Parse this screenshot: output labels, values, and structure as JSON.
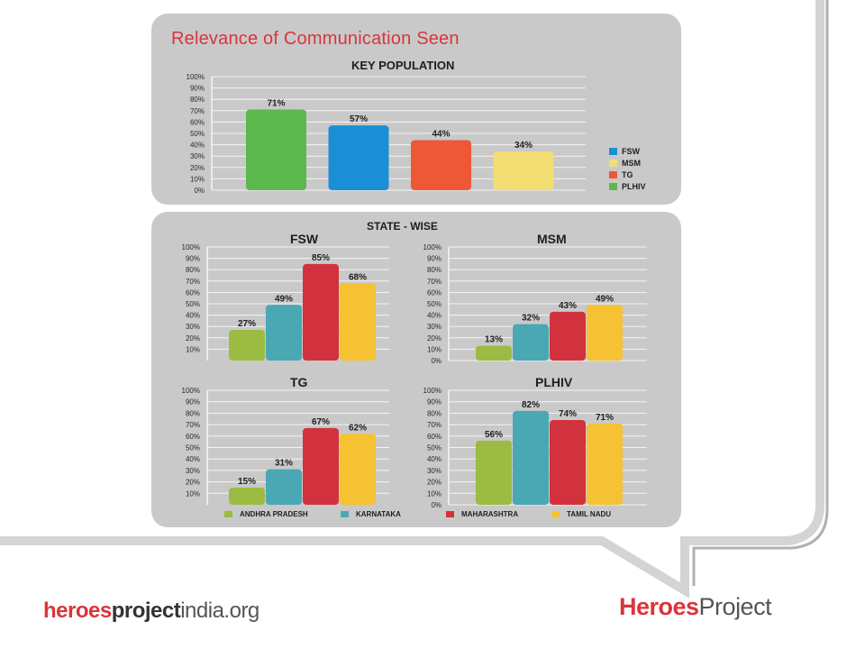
{
  "page": {
    "title": "Relevance of Communication Seen"
  },
  "colors": {
    "panel": "#c9c9c9",
    "grid": "#f4f4f4",
    "title_red": "#d9353c",
    "frame": "#b9b9b9"
  },
  "chart_data": [
    {
      "type": "bar",
      "title": "KEY POPULATION",
      "categories": [
        "PLHIV",
        "FSW",
        "TG",
        "MSM"
      ],
      "values": [
        71,
        57,
        44,
        34
      ],
      "data_labels": [
        "71%",
        "57%",
        "44%",
        "34%"
      ],
      "colors": [
        "#5cb84c",
        "#1a8fd5",
        "#ee5837",
        "#f2de73"
      ],
      "ylim": [
        0,
        100
      ],
      "yticks": [
        "100%",
        "90%",
        "80%",
        "70%",
        "60%",
        "50%",
        "40%",
        "30%",
        "20%",
        "10%",
        "0%"
      ],
      "legend": [
        {
          "label": "FSW",
          "color": "#1a8fd5"
        },
        {
          "label": "MSM",
          "color": "#f2de73"
        },
        {
          "label": "TG",
          "color": "#ee5837"
        },
        {
          "label": "PLHIV",
          "color": "#5cb84c"
        }
      ],
      "legend_position": "right",
      "grid": true
    },
    {
      "type": "bar",
      "title": "FSW",
      "categories": [
        "ANDHRA PRADESH",
        "KARNATAKA",
        "MAHARASHTRA",
        "TAMIL NADU"
      ],
      "values": [
        27,
        49,
        85,
        68
      ],
      "data_labels": [
        "27%",
        "49%",
        "85%",
        "68%"
      ],
      "ylim": [
        0,
        100
      ],
      "yticks": [
        "100%",
        "90%",
        "80%",
        "70%",
        "60%",
        "50%",
        "40%",
        "30%",
        "20%",
        "10%"
      ],
      "grid": true
    },
    {
      "type": "bar",
      "title": "MSM",
      "categories": [
        "ANDHRA PRADESH",
        "KARNATAKA",
        "MAHARASHTRA",
        "TAMIL NADU"
      ],
      "values": [
        13,
        32,
        43,
        49
      ],
      "data_labels": [
        "13%",
        "32%",
        "43%",
        "49%"
      ],
      "ylim": [
        0,
        100
      ],
      "yticks": [
        "100%",
        "90%",
        "80%",
        "70%",
        "60%",
        "50%",
        "40%",
        "30%",
        "20%",
        "10%",
        "0%"
      ],
      "grid": true
    },
    {
      "type": "bar",
      "title": "TG",
      "categories": [
        "ANDHRA PRADESH",
        "KARNATAKA",
        "MAHARASHTRA",
        "TAMIL NADU"
      ],
      "values": [
        15,
        31,
        67,
        62
      ],
      "data_labels": [
        "15%",
        "31%",
        "67%",
        "62%"
      ],
      "ylim": [
        0,
        100
      ],
      "yticks": [
        "100%",
        "90%",
        "80%",
        "70%",
        "60%",
        "50%",
        "40%",
        "30%",
        "20%",
        "10%"
      ],
      "grid": true
    },
    {
      "type": "bar",
      "title": "PLHIV",
      "categories": [
        "ANDHRA PRADESH",
        "KARNATAKA",
        "MAHARASHTRA",
        "TAMIL NADU"
      ],
      "values": [
        56,
        82,
        74,
        71
      ],
      "data_labels": [
        "56%",
        "82%",
        "74%",
        "71%"
      ],
      "ylim": [
        0,
        100
      ],
      "yticks": [
        "100%",
        "90%",
        "80%",
        "70%",
        "60%",
        "50%",
        "40%",
        "30%",
        "20%",
        "10%",
        "0%"
      ],
      "grid": true
    }
  ],
  "state_section": {
    "title": "STATE - WISE",
    "legend": [
      {
        "label": "ANDHRA PRADESH",
        "color": "#9bbb43"
      },
      {
        "label": "KARNATAKA",
        "color": "#4aa7b4"
      },
      {
        "label": "MAHARASHTRA",
        "color": "#d2323d"
      },
      {
        "label": "TAMIL NADU",
        "color": "#f4c232"
      }
    ]
  },
  "footer": {
    "left_logo": {
      "part1": "heroes",
      "part2": "project",
      "part3": "india.org"
    },
    "right_logo": {
      "part1": "Heroes",
      "part2": "Project"
    }
  }
}
